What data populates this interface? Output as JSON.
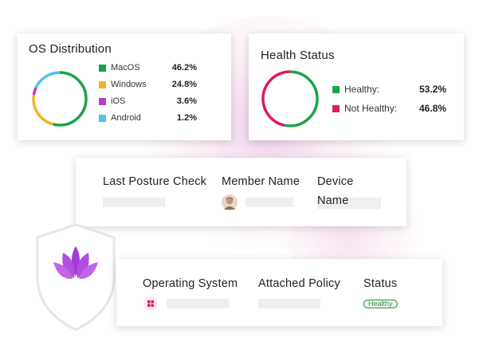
{
  "os_card": {
    "title": "OS Distribution",
    "items": [
      {
        "label": "MacOS",
        "value": "46.2%",
        "color": "#1aa34a"
      },
      {
        "label": "Windows",
        "value": "24.8%",
        "color": "#f0b429"
      },
      {
        "label": "iOS",
        "value": "3.6%",
        "color": "#b53fcf"
      },
      {
        "label": "Android",
        "value": "1.2%",
        "color": "#4fc3e8"
      }
    ]
  },
  "health_card": {
    "title": "Health Status",
    "items": [
      {
        "label": "Healthy:",
        "value": "53.2%",
        "color": "#1aa34a"
      },
      {
        "label": "Not Healthy:",
        "value": "46.8%",
        "color": "#e0195c"
      }
    ]
  },
  "posture_card": {
    "headers": [
      "Last Posture Check",
      "Member Name",
      "Device"
    ],
    "device_name": "Name"
  },
  "policy_card": {
    "headers": [
      "Operating System",
      "Attached Policy",
      "Status"
    ],
    "status_badge": "Healthy"
  },
  "icons": {
    "shield": "shield-icon",
    "lotus": "lotus-logo-icon",
    "windows": "windows-icon",
    "avatar": "avatar-icon"
  },
  "colors": {
    "brand_purple": "#a43bd6",
    "healthy_green": "#2a8a3a"
  }
}
